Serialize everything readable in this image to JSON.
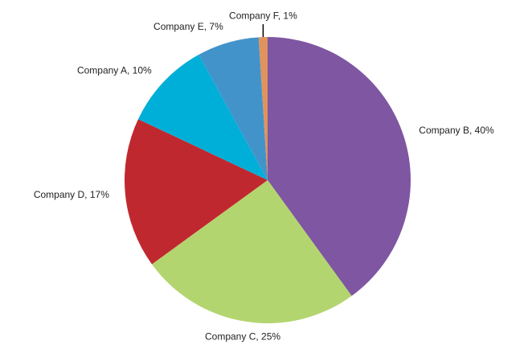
{
  "chart_data": {
    "type": "pie",
    "labels": [
      "Company B, 40%",
      "Company C, 25%",
      "Company D, 17%",
      "Company A, 10%",
      "Company E, 7%",
      "Company F, 1%"
    ],
    "values": [
      40,
      25,
      17,
      10,
      7,
      1
    ],
    "colors": [
      "#7f56a1",
      "#b3d56f",
      "#c0282f",
      "#00afd8",
      "#4393cb",
      "#e0935c"
    ]
  }
}
